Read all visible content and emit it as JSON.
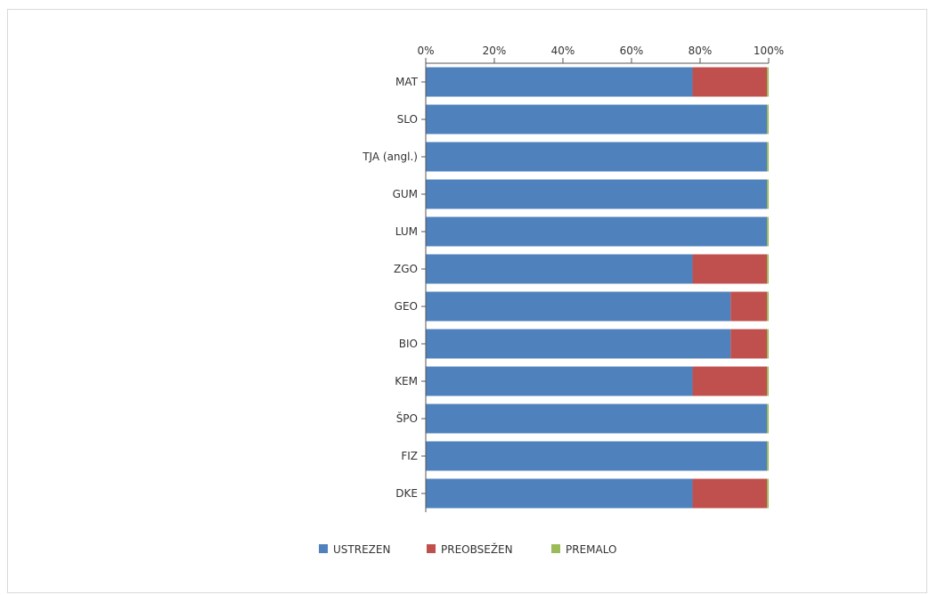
{
  "chart_data": {
    "type": "bar",
    "orientation": "horizontal",
    "stacked": true,
    "percent_stacked": true,
    "categories": [
      "MAT",
      "SLO",
      "TJA (angl.)",
      "GUM",
      "LUM",
      "ZGO",
      "GEO",
      "BIO",
      "KEM",
      "ŠPO",
      "FIZ",
      "DKE"
    ],
    "series": [
      {
        "name": "USTREZEN",
        "color": "#4f81bd",
        "values": [
          77.8,
          99.5,
          99.5,
          99.5,
          99.5,
          77.8,
          88.9,
          88.9,
          77.8,
          99.5,
          99.5,
          77.8
        ]
      },
      {
        "name": "PREOBSEŽEN",
        "color": "#c0504d",
        "values": [
          21.7,
          0,
          0,
          0,
          0,
          21.7,
          10.6,
          10.6,
          21.7,
          0,
          0,
          21.7
        ]
      },
      {
        "name": "PREMALO",
        "color": "#9bbb59",
        "values": [
          0.5,
          0.5,
          0.5,
          0.5,
          0.5,
          0.5,
          0.5,
          0.5,
          0.5,
          0.5,
          0.5,
          0.5
        ]
      }
    ],
    "x_ticks": [
      "0%",
      "20%",
      "40%",
      "60%",
      "80%",
      "100%"
    ],
    "xlim": [
      0,
      100
    ],
    "x_axis_position": "top",
    "grid": false,
    "legend_position": "bottom"
  }
}
